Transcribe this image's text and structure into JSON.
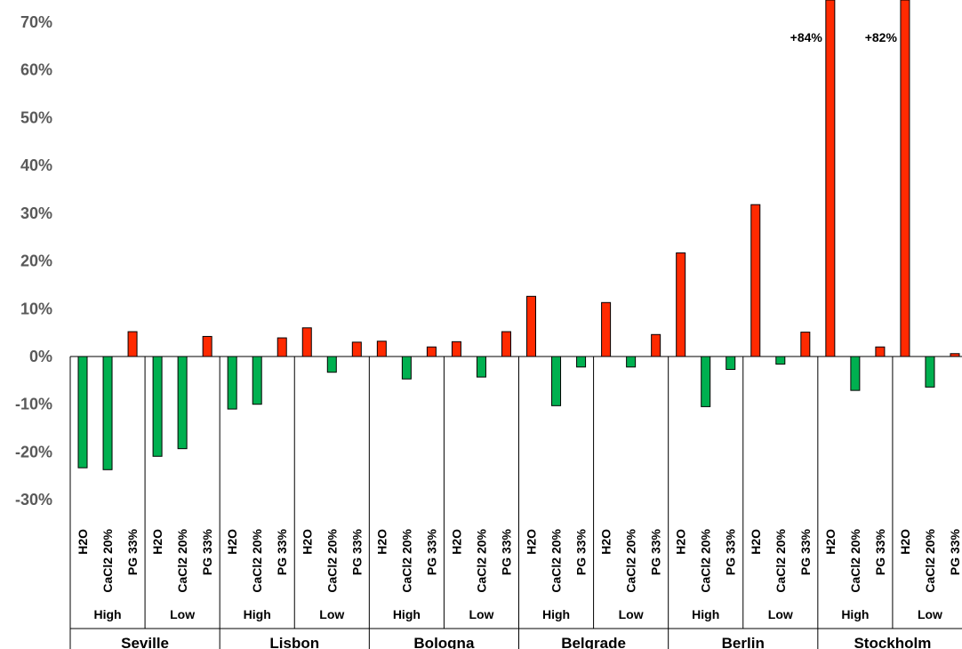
{
  "chart_data": {
    "type": "bar",
    "title": "",
    "xlabel": "",
    "ylabel": "",
    "ylim": [
      -30,
      70
    ],
    "yticks": [
      70,
      60,
      50,
      40,
      30,
      20,
      10,
      0,
      -10,
      -20,
      -30
    ],
    "ytick_labels": [
      "70%",
      "60%",
      "50%",
      "40%",
      "30%",
      "20%",
      "10%",
      "0%",
      "-10%",
      "-20%",
      "-30%"
    ],
    "grid": false,
    "legend": "none",
    "treatments": [
      "H2O",
      "CaCl2 20%",
      "PG 33%"
    ],
    "levels": [
      "High",
      "Low"
    ],
    "cities": [
      "Seville",
      "Lisbon",
      "Bologna",
      "Belgrade",
      "Berlin",
      "Stockholm"
    ],
    "colors": {
      "positive": "#ff2a00",
      "negative": "#00b050",
      "edge": "#000000"
    },
    "values": {
      "Seville": {
        "High": [
          -23.3,
          -23.7,
          5.2
        ],
        "Low": [
          -20.9,
          -19.3,
          4.2
        ]
      },
      "Lisbon": {
        "High": [
          -11.0,
          -10.0,
          3.9
        ],
        "Low": [
          6.0,
          -3.3,
          3.0
        ]
      },
      "Bologna": {
        "High": [
          3.2,
          -4.7,
          2.0
        ],
        "Low": [
          3.1,
          -4.3,
          5.2
        ]
      },
      "Belgrade": {
        "High": [
          12.6,
          -10.3,
          -2.2
        ],
        "Low": [
          11.3,
          -2.2,
          4.6
        ]
      },
      "Berlin": {
        "High": [
          21.7,
          -10.5,
          -2.7
        ],
        "Low": [
          31.8,
          -1.6,
          5.1
        ]
      },
      "Stockholm": {
        "High": [
          84,
          -7.1,
          2.0
        ],
        "Low": [
          82,
          -6.4,
          0.6
        ]
      }
    },
    "annotations": [
      {
        "text": "+84%",
        "city": "Stockholm",
        "level": "High",
        "treatment": "H2O"
      },
      {
        "text": "+82%",
        "city": "Stockholm",
        "level": "Low",
        "treatment": "H2O"
      }
    ]
  }
}
